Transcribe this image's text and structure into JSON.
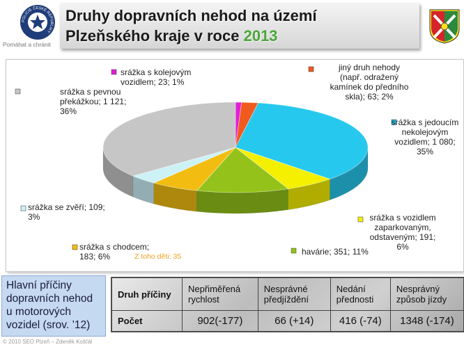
{
  "header": {
    "title_line1": "Druhy dopravních nehod na území",
    "title_line2": "Plzeňského kraje v roce",
    "title_year": "2013",
    "slogan": "Pomáhat a chránit",
    "logo_text": "POLICIE ČESKÉ REPUBLIKY"
  },
  "chart_data": {
    "type": "pie",
    "style": "3d",
    "title": "",
    "slices": [
      {
        "name": "srážka s kolejovým vozidlem",
        "value": 23,
        "percent": 1,
        "color": "#e11fd6",
        "label": "srážka s kolejovým vozidlem; 23; 1%"
      },
      {
        "name": "jiný druh nehody (např. odražený kamínek do předního skla)",
        "value": 63,
        "percent": 2,
        "color": "#f05a1e",
        "label": "jiný druh nehody (např. odražený kamínek do předního skla); 63; 2%"
      },
      {
        "name": "srážka s jedoucím nekolejovým vozidlem",
        "value": 1080,
        "percent": 35,
        "color": "#27c8ee",
        "label": "srážka s jedoucím nekolejovým vozidlem; 1 080; 35%"
      },
      {
        "name": "srážka s vozidlem zaparkovaným, odstaveným",
        "value": 191,
        "percent": 6,
        "color": "#f4f000",
        "label": "srážka s vozidlem zaparkovaným, odstaveným; 191; 6%"
      },
      {
        "name": "havárie",
        "value": 351,
        "percent": 11,
        "color": "#95c21a",
        "label": "havárie; 351; 11%"
      },
      {
        "name": "srážka s chodcem",
        "value": 183,
        "percent": 6,
        "color": "#f2bd10",
        "label": "srážka s chodcem; 183; 6%"
      },
      {
        "name": "srážka se zvěří",
        "value": 109,
        "percent": 3,
        "color": "#ccf2f7",
        "label": "srážka se zvěří; 109; 3%"
      },
      {
        "name": "srážka s pevnou překážkou",
        "value": 1121,
        "percent": 36,
        "color": "#c6c6c6",
        "label": "srážka s pevnou překážkou; 1 121; 36%"
      }
    ],
    "annotation": "Z toho děti: 35",
    "label_lines": [
      [
        "srážka s kolejovým",
        "vozidlem; 23; 1%"
      ],
      [
        "jiný druh nehody",
        "(např. odražený",
        "kamínek do předního",
        "skla); 63; 2%"
      ],
      [
        "srážka s jedoucím",
        "nekolejovým",
        "vozidlem; 1 080;",
        "35%"
      ],
      [
        "srážka s vozidlem",
        "zaparkovaným,",
        "odstaveným; 191;",
        "6%"
      ],
      [
        "havárie; 351; 11%"
      ],
      [
        "srážka s chodcem;",
        "183; 6%"
      ],
      [
        "srážka se zvěří; 109;",
        "3%"
      ],
      [
        "srážka s pevnou",
        "překážkou; 1 121;",
        "36%"
      ]
    ]
  },
  "causes_box": {
    "title": "Hlavní příčiny dopravních nehod u motorových vozidel (srov. ’12)"
  },
  "causes_table": {
    "row_header_1": "Druh příčiny",
    "row_header_2": "Počet",
    "columns": [
      {
        "name": "Nepřiměřená rychlost",
        "count": "902(-177)"
      },
      {
        "name": "Nesprávné předjíždění",
        "count": "66 (+14)"
      },
      {
        "name": "Nedání přednosti",
        "count": "416 (-74)"
      },
      {
        "name": "Nesprávný způsob jízdy",
        "count": "1348 (-174)"
      }
    ]
  },
  "footer": {
    "text": "© 2010 SEO Plzeň – Zdeněk Košťál"
  }
}
